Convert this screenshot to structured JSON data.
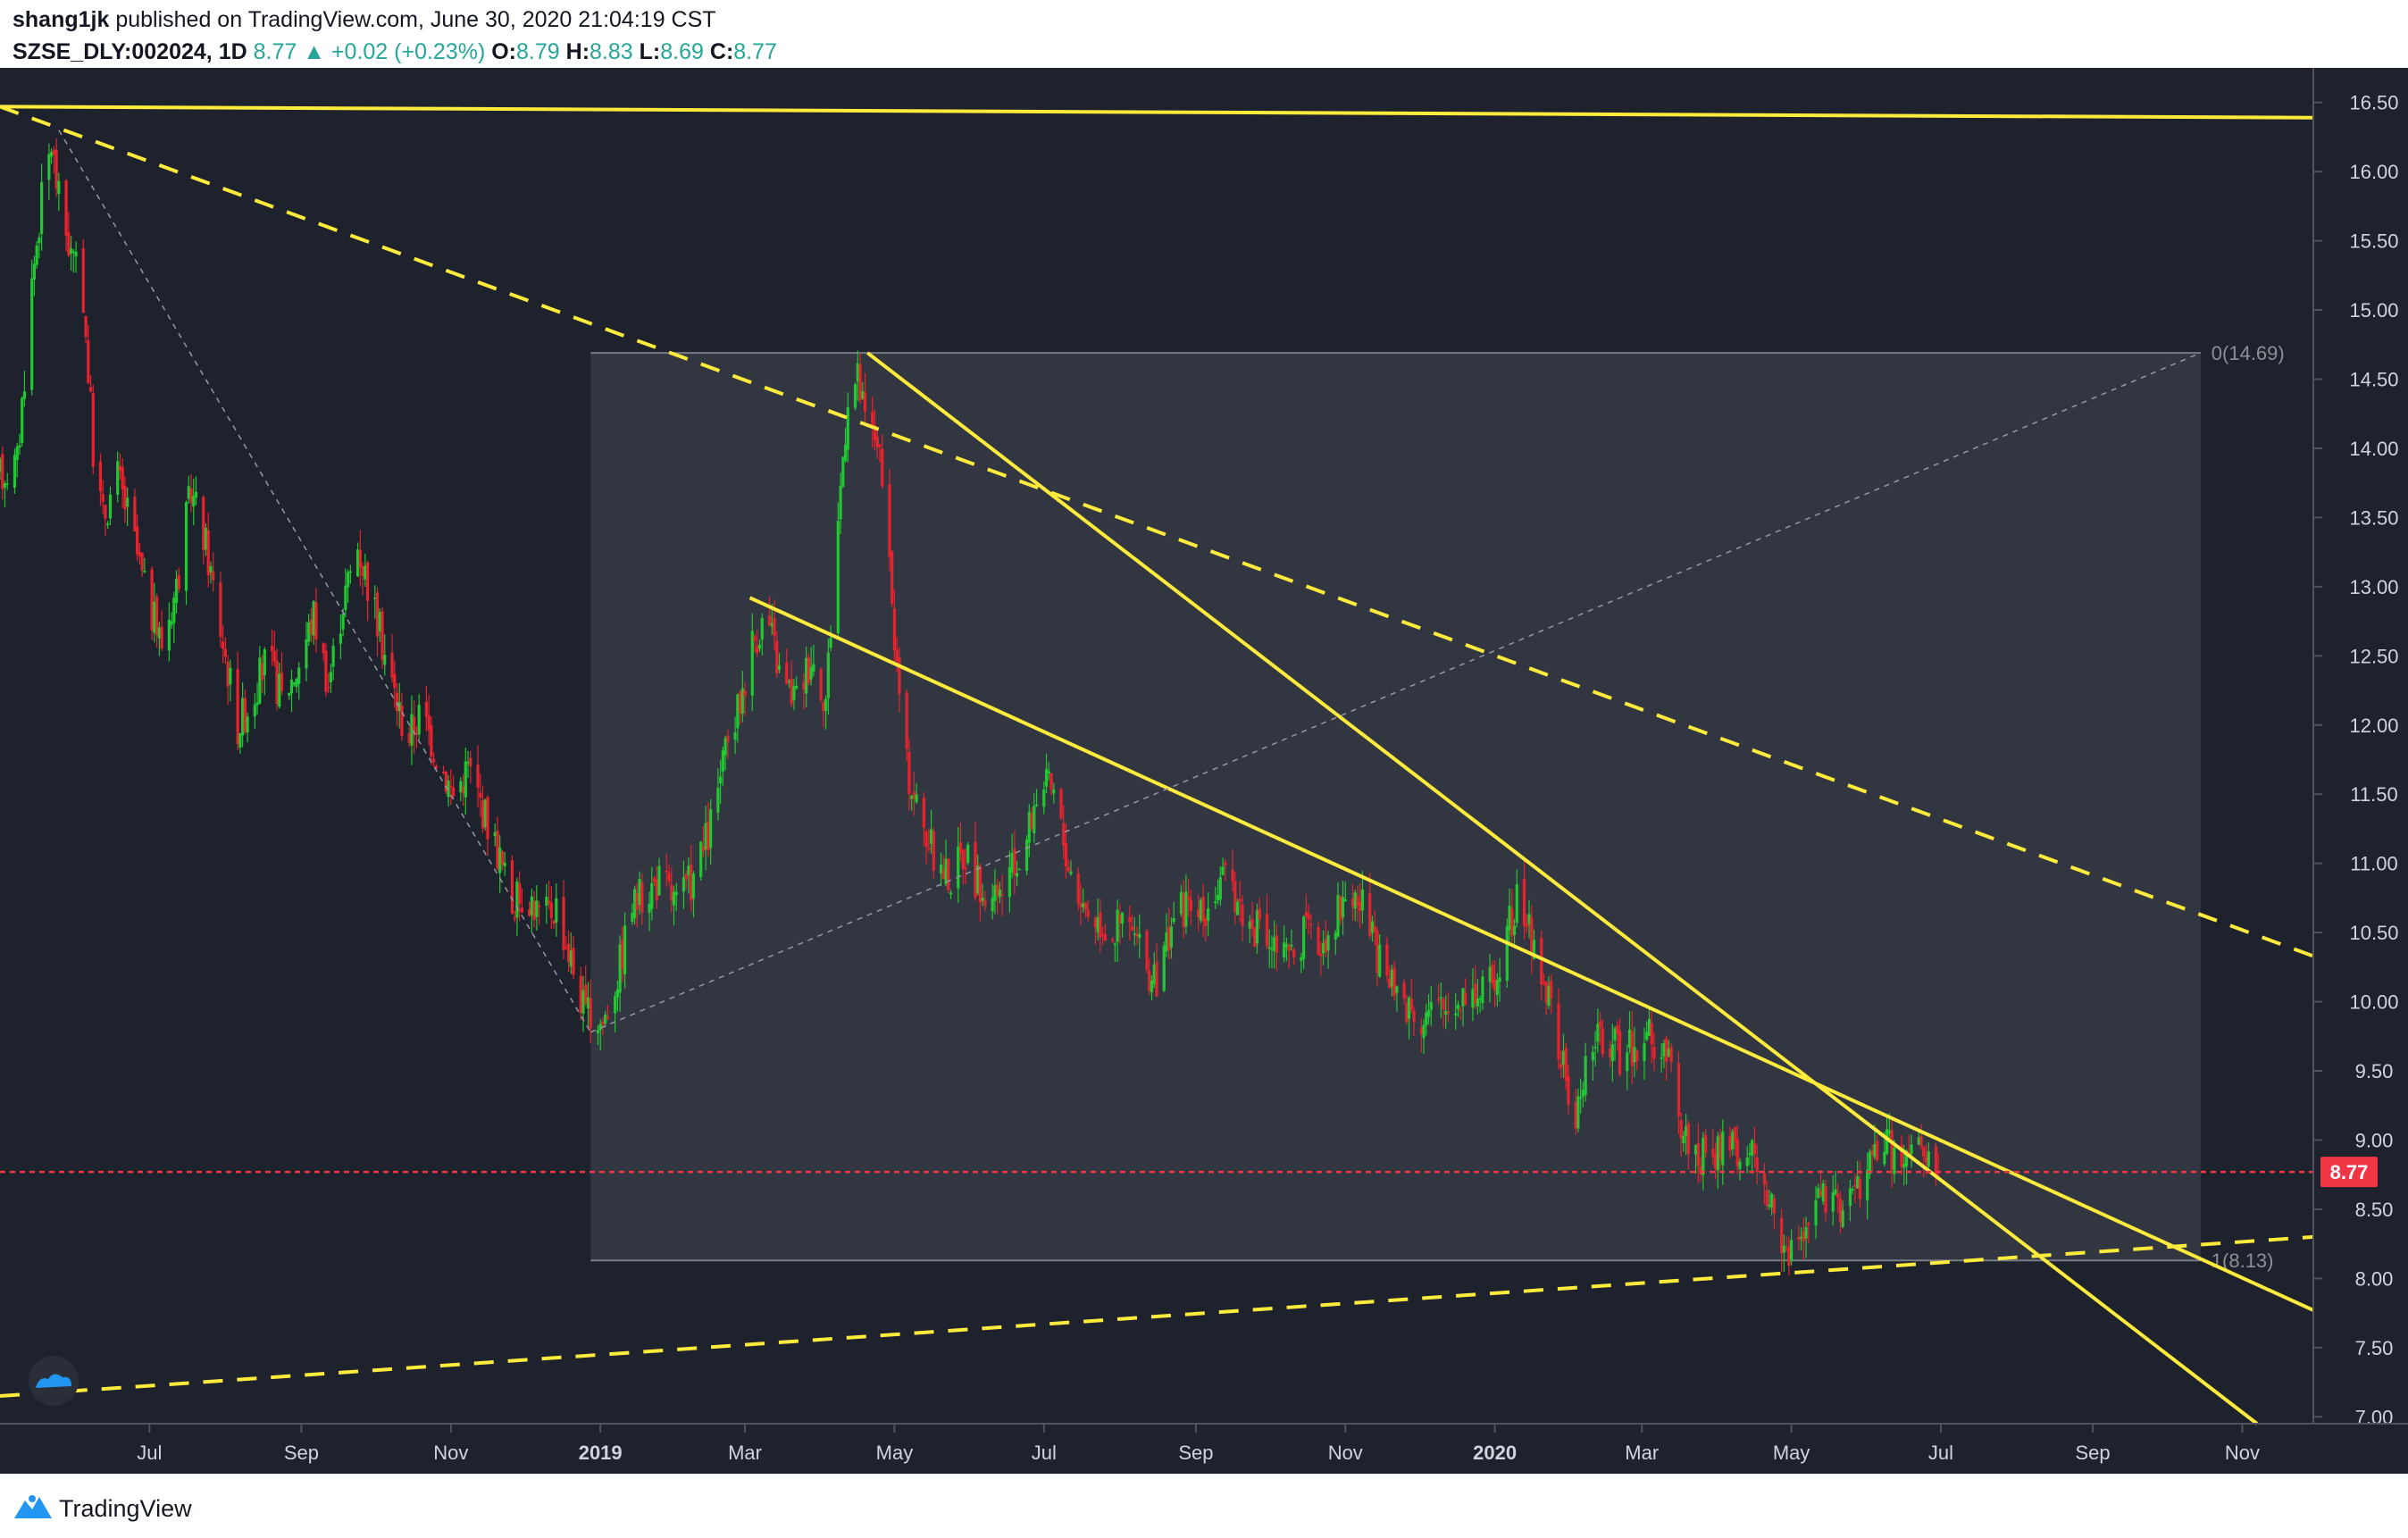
{
  "header": {
    "author": "shang1jk",
    "published_text": " published on TradingView.com, June 30, 2020 21:04:19 CST",
    "symbol": "SZSE_DLY:002024, 1D",
    "last": "8.77",
    "change_arrow": "▲",
    "change": "+0.02 (+0.23%)",
    "o_label": "O:",
    "o_value": "8.79",
    "h_label": "H:",
    "h_value": "8.83",
    "l_label": "L:",
    "l_value": "8.69",
    "c_label": "C:",
    "c_value": "8.77"
  },
  "footer": {
    "brand": "TradingView",
    "logo_icon": "tradingview-logo-icon"
  },
  "colors": {
    "background": "#1e222d",
    "grid": "#2a2e39",
    "up": "#21c832",
    "down": "#e8232e",
    "trendline": "#ffeb3b",
    "current_price": "#f23645",
    "fib_box": "#363a45"
  },
  "chart_data": {
    "type": "candlestick",
    "x_start": "2018-05-01",
    "x_end": "2020-11-30",
    "ylim": [
      6.95,
      16.75
    ],
    "y_ticks": [
      "16.50",
      "16.00",
      "15.50",
      "15.00",
      "14.50",
      "14.00",
      "13.50",
      "13.00",
      "12.50",
      "12.00",
      "11.50",
      "11.00",
      "10.50",
      "10.00",
      "9.50",
      "9.00",
      "8.50",
      "8.00",
      "7.50",
      "7.00"
    ],
    "x_ticks": [
      {
        "label": "Jul",
        "date": "2018-07-01",
        "bold": false
      },
      {
        "label": "Sep",
        "date": "2018-09-01",
        "bold": false
      },
      {
        "label": "Nov",
        "date": "2018-11-01",
        "bold": false
      },
      {
        "label": "2019",
        "date": "2019-01-01",
        "bold": true
      },
      {
        "label": "Mar",
        "date": "2019-03-01",
        "bold": false
      },
      {
        "label": "May",
        "date": "2019-05-01",
        "bold": false
      },
      {
        "label": "Jul",
        "date": "2019-07-01",
        "bold": false
      },
      {
        "label": "Sep",
        "date": "2019-09-01",
        "bold": false
      },
      {
        "label": "Nov",
        "date": "2019-11-01",
        "bold": false
      },
      {
        "label": "2020",
        "date": "2020-01-01",
        "bold": true
      },
      {
        "label": "Mar",
        "date": "2020-03-01",
        "bold": false
      },
      {
        "label": "May",
        "date": "2020-05-01",
        "bold": false
      },
      {
        "label": "Jul",
        "date": "2020-07-01",
        "bold": false
      },
      {
        "label": "Sep",
        "date": "2020-09-01",
        "bold": false
      },
      {
        "label": "Nov",
        "date": "2020-11-01",
        "bold": false
      }
    ],
    "current_price": 8.77,
    "current_price_label": "8.77",
    "price_path": [
      [
        "2018-05-01",
        13.8
      ],
      [
        "2018-05-08",
        13.9
      ],
      [
        "2018-05-14",
        15.2
      ],
      [
        "2018-05-18",
        15.8
      ],
      [
        "2018-05-22",
        16.2
      ],
      [
        "2018-05-25",
        15.8
      ],
      [
        "2018-05-30",
        15.4
      ],
      [
        "2018-06-04",
        15.1
      ],
      [
        "2018-06-08",
        14.0
      ],
      [
        "2018-06-12",
        13.5
      ],
      [
        "2018-06-18",
        13.8
      ],
      [
        "2018-06-24",
        13.4
      ],
      [
        "2018-06-30",
        12.9
      ],
      [
        "2018-07-06",
        12.6
      ],
      [
        "2018-07-12",
        13.0
      ],
      [
        "2018-07-18",
        13.7
      ],
      [
        "2018-07-24",
        13.3
      ],
      [
        "2018-07-30",
        12.7
      ],
      [
        "2018-08-06",
        12.0
      ],
      [
        "2018-08-12",
        12.2
      ],
      [
        "2018-08-18",
        12.5
      ],
      [
        "2018-08-24",
        12.2
      ],
      [
        "2018-08-30",
        12.4
      ],
      [
        "2018-09-06",
        12.8
      ],
      [
        "2018-09-12",
        12.3
      ],
      [
        "2018-09-18",
        12.9
      ],
      [
        "2018-09-24",
        13.3
      ],
      [
        "2018-09-30",
        12.9
      ],
      [
        "2018-10-08",
        12.3
      ],
      [
        "2018-10-14",
        11.9
      ],
      [
        "2018-10-20",
        12.1
      ],
      [
        "2018-10-26",
        11.8
      ],
      [
        "2018-11-02",
        11.5
      ],
      [
        "2018-11-08",
        11.7
      ],
      [
        "2018-11-14",
        11.4
      ],
      [
        "2018-11-20",
        11.1
      ],
      [
        "2018-11-26",
        10.7
      ],
      [
        "2018-12-02",
        10.8
      ],
      [
        "2018-12-08",
        10.6
      ],
      [
        "2018-12-14",
        10.7
      ],
      [
        "2018-12-20",
        10.3
      ],
      [
        "2018-12-26",
        9.9
      ],
      [
        "2019-01-02",
        9.85
      ],
      [
        "2019-01-08",
        10.2
      ],
      [
        "2019-01-14",
        10.7
      ],
      [
        "2019-01-20",
        10.8
      ],
      [
        "2019-01-26",
        10.9
      ],
      [
        "2019-02-01",
        10.7
      ],
      [
        "2019-02-08",
        10.9
      ],
      [
        "2019-02-14",
        11.2
      ],
      [
        "2019-02-20",
        11.7
      ],
      [
        "2019-02-26",
        12.1
      ],
      [
        "2019-03-04",
        12.6
      ],
      [
        "2019-03-10",
        12.8
      ],
      [
        "2019-03-16",
        12.3
      ],
      [
        "2019-03-22",
        12.2
      ],
      [
        "2019-03-28",
        12.5
      ],
      [
        "2019-04-03",
        12.2
      ],
      [
        "2019-04-08",
        13.5
      ],
      [
        "2019-04-12",
        14.4
      ],
      [
        "2019-04-16",
        14.5
      ],
      [
        "2019-04-20",
        14.1
      ],
      [
        "2019-04-24",
        14.1
      ],
      [
        "2019-04-28",
        13.3
      ],
      [
        "2019-05-02",
        12.4
      ],
      [
        "2019-05-06",
        11.7
      ],
      [
        "2019-05-12",
        11.3
      ],
      [
        "2019-05-18",
        11.0
      ],
      [
        "2019-05-24",
        10.9
      ],
      [
        "2019-05-30",
        11.1
      ],
      [
        "2019-06-05",
        10.8
      ],
      [
        "2019-06-11",
        10.7
      ],
      [
        "2019-06-17",
        10.9
      ],
      [
        "2019-06-23",
        11.1
      ],
      [
        "2019-06-29",
        11.6
      ],
      [
        "2019-07-05",
        11.5
      ],
      [
        "2019-07-11",
        11.0
      ],
      [
        "2019-07-17",
        10.7
      ],
      [
        "2019-07-23",
        10.6
      ],
      [
        "2019-07-29",
        10.5
      ],
      [
        "2019-08-04",
        10.6
      ],
      [
        "2019-08-10",
        10.3
      ],
      [
        "2019-08-16",
        10.1
      ],
      [
        "2019-08-22",
        10.6
      ],
      [
        "2019-08-28",
        10.7
      ],
      [
        "2019-09-03",
        10.6
      ],
      [
        "2019-09-09",
        10.8
      ],
      [
        "2019-09-15",
        10.9
      ],
      [
        "2019-09-21",
        10.6
      ],
      [
        "2019-09-27",
        10.5
      ],
      [
        "2019-10-03",
        10.4
      ],
      [
        "2019-10-09",
        10.3
      ],
      [
        "2019-10-15",
        10.5
      ],
      [
        "2019-10-21",
        10.4
      ],
      [
        "2019-10-27",
        10.6
      ],
      [
        "2019-11-02",
        10.8
      ],
      [
        "2019-11-08",
        10.7
      ],
      [
        "2019-11-14",
        10.3
      ],
      [
        "2019-11-20",
        10.1
      ],
      [
        "2019-11-26",
        10.0
      ],
      [
        "2019-12-02",
        9.9
      ],
      [
        "2019-12-08",
        9.95
      ],
      [
        "2019-12-14",
        9.95
      ],
      [
        "2019-12-20",
        10.1
      ],
      [
        "2019-12-26",
        10.05
      ],
      [
        "2020-01-01",
        10.2
      ],
      [
        "2020-01-06",
        10.5
      ],
      [
        "2020-01-10",
        10.7
      ],
      [
        "2020-01-14",
        10.6
      ],
      [
        "2020-01-18",
        10.3
      ],
      [
        "2020-01-22",
        10.1
      ],
      [
        "2020-02-03",
        9.1
      ],
      [
        "2020-02-06",
        9.5
      ],
      [
        "2020-02-10",
        9.7
      ],
      [
        "2020-02-16",
        9.75
      ],
      [
        "2020-02-22",
        9.6
      ],
      [
        "2020-02-28",
        9.7
      ],
      [
        "2020-03-04",
        9.8
      ],
      [
        "2020-03-08",
        9.5
      ],
      [
        "2020-03-12",
        9.6
      ],
      [
        "2020-03-16",
        9.1
      ],
      [
        "2020-03-22",
        8.95
      ],
      [
        "2020-03-28",
        8.85
      ],
      [
        "2020-04-03",
        8.95
      ],
      [
        "2020-04-09",
        8.9
      ],
      [
        "2020-04-15",
        8.85
      ],
      [
        "2020-04-21",
        8.6
      ],
      [
        "2020-04-27",
        8.3
      ],
      [
        "2020-05-01",
        8.15
      ],
      [
        "2020-05-06",
        8.4
      ],
      [
        "2020-05-12",
        8.6
      ],
      [
        "2020-05-18",
        8.5
      ],
      [
        "2020-05-24",
        8.6
      ],
      [
        "2020-05-30",
        8.7
      ],
      [
        "2020-06-03",
        8.9
      ],
      [
        "2020-06-08",
        9.0
      ],
      [
        "2020-06-12",
        8.9
      ],
      [
        "2020-06-16",
        8.8
      ],
      [
        "2020-06-20",
        9.0
      ],
      [
        "2020-06-24",
        8.85
      ],
      [
        "2020-06-30",
        8.77
      ]
    ],
    "fib_box": {
      "x_start": "2018-12-28",
      "x_end": "2020-10-15",
      "top": 14.69,
      "bottom": 8.13,
      "top_label": "0(14.69)",
      "bottom_label": "1(8.13)"
    },
    "annotation_lines": [
      {
        "kind": "solid",
        "from": [
          "2018-05-01",
          16.47
        ],
        "to": [
          "2020-11-30",
          16.39
        ]
      },
      {
        "kind": "dashed",
        "from": [
          "2018-05-01",
          16.47
        ],
        "to": [
          "2020-11-30",
          10.33
        ]
      },
      {
        "kind": "dashed",
        "from": [
          "2018-05-01",
          7.15
        ],
        "to": [
          "2020-11-30",
          8.3
        ]
      },
      {
        "kind": "solid",
        "from": [
          "2019-04-20",
          14.69
        ],
        "to": [
          "2020-11-07",
          6.95
        ]
      },
      {
        "kind": "solid",
        "from": [
          "2019-03-03",
          12.92
        ],
        "to": [
          "2020-11-30",
          7.77
        ]
      },
      {
        "kind": "thin-dashed",
        "from": [
          "2018-05-25",
          16.3
        ],
        "to": [
          "2018-12-28",
          9.78
        ]
      },
      {
        "kind": "thin-dashed",
        "from": [
          "2018-12-28",
          9.78
        ],
        "to": [
          "2020-10-15",
          14.69
        ]
      }
    ]
  }
}
